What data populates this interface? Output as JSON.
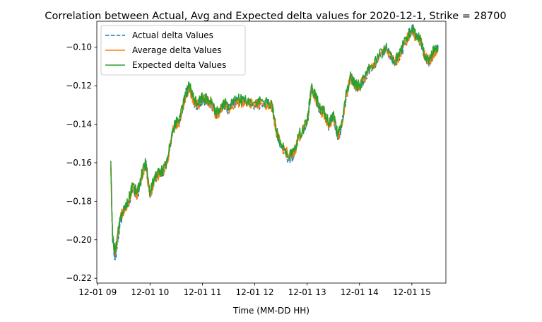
{
  "chart_data": {
    "type": "line",
    "title": "Correlation between Actual, Avg and Expected delta values for 2020-12-1, Strike = 28700",
    "xlabel": "Time (MM-DD HH)",
    "ylabel": "",
    "xlim": [
      "2020-12-01 08:59",
      "2020-12-01 15:39"
    ],
    "ylim": [
      -0.2225,
      -0.0865
    ],
    "x_ticks": [
      "12-01 09",
      "12-01 10",
      "12-01 11",
      "12-01 12",
      "12-01 13",
      "12-01 14",
      "12-01 15"
    ],
    "y_ticks": [
      -0.22,
      -0.2,
      -0.18,
      -0.16,
      -0.14,
      -0.12,
      -0.1
    ],
    "y_tick_labels": [
      "−0.22",
      "−0.20",
      "−0.18",
      "−0.16",
      "−0.14",
      "−0.12",
      "−0.10"
    ],
    "grid": false,
    "legend_position": "top-left",
    "series": [
      {
        "name": "Actual delta Values",
        "color": "#1f77b4",
        "style": "dashed",
        "x": [
          "09:15",
          "09:17",
          "09:20",
          "09:23",
          "09:26",
          "09:30",
          "09:35",
          "09:40",
          "09:45",
          "09:50",
          "09:55",
          "10:00",
          "10:05",
          "10:10",
          "10:15",
          "10:20",
          "10:25",
          "10:30",
          "10:35",
          "10:40",
          "10:45",
          "10:50",
          "10:55",
          "11:00",
          "11:05",
          "11:10",
          "11:15",
          "11:20",
          "11:25",
          "11:30",
          "11:40",
          "11:50",
          "12:00",
          "12:10",
          "12:20",
          "12:25",
          "12:30",
          "12:40",
          "12:45",
          "12:50",
          "13:00",
          "13:05",
          "13:10",
          "13:15",
          "13:20",
          "13:25",
          "13:30",
          "13:35",
          "13:40",
          "13:45",
          "13:50",
          "13:55",
          "14:00",
          "14:10",
          "14:20",
          "14:30",
          "14:40",
          "14:45",
          "14:50",
          "15:00",
          "15:05",
          "15:10",
          "15:15",
          "15:20",
          "15:25",
          "15:30"
        ],
        "y": [
          -0.163,
          -0.2,
          -0.21,
          -0.2,
          -0.19,
          -0.185,
          -0.182,
          -0.172,
          -0.178,
          -0.168,
          -0.16,
          -0.178,
          -0.168,
          -0.166,
          -0.165,
          -0.16,
          -0.145,
          -0.14,
          -0.138,
          -0.125,
          -0.12,
          -0.128,
          -0.13,
          -0.127,
          -0.128,
          -0.129,
          -0.135,
          -0.133,
          -0.13,
          -0.132,
          -0.128,
          -0.129,
          -0.13,
          -0.129,
          -0.131,
          -0.145,
          -0.152,
          -0.158,
          -0.155,
          -0.147,
          -0.14,
          -0.12,
          -0.127,
          -0.133,
          -0.135,
          -0.142,
          -0.135,
          -0.148,
          -0.14,
          -0.125,
          -0.115,
          -0.12,
          -0.121,
          -0.113,
          -0.107,
          -0.1,
          -0.108,
          -0.105,
          -0.1,
          -0.09,
          -0.095,
          -0.097,
          -0.105,
          -0.108,
          -0.103,
          -0.1
        ]
      },
      {
        "name": "Average delta Values",
        "color": "#ff7f0e",
        "style": "solid",
        "x": [
          "09:15",
          "09:17",
          "09:20",
          "09:23",
          "09:26",
          "09:30",
          "09:35",
          "09:40",
          "09:45",
          "09:50",
          "09:55",
          "10:00",
          "10:05",
          "10:10",
          "10:15",
          "10:20",
          "10:25",
          "10:30",
          "10:35",
          "10:40",
          "10:45",
          "10:50",
          "10:55",
          "11:00",
          "11:05",
          "11:10",
          "11:15",
          "11:20",
          "11:25",
          "11:30",
          "11:40",
          "11:50",
          "12:00",
          "12:10",
          "12:20",
          "12:25",
          "12:30",
          "12:40",
          "12:45",
          "12:50",
          "13:00",
          "13:05",
          "13:10",
          "13:15",
          "13:20",
          "13:25",
          "13:30",
          "13:35",
          "13:40",
          "13:45",
          "13:50",
          "13:55",
          "14:00",
          "14:10",
          "14:20",
          "14:30",
          "14:40",
          "14:45",
          "14:50",
          "15:00",
          "15:05",
          "15:10",
          "15:15",
          "15:20",
          "15:25",
          "15:30"
        ],
        "y": [
          -0.162,
          -0.198,
          -0.208,
          -0.198,
          -0.189,
          -0.184,
          -0.181,
          -0.172,
          -0.177,
          -0.168,
          -0.161,
          -0.177,
          -0.168,
          -0.166,
          -0.164,
          -0.16,
          -0.145,
          -0.14,
          -0.137,
          -0.126,
          -0.121,
          -0.128,
          -0.13,
          -0.127,
          -0.128,
          -0.129,
          -0.135,
          -0.133,
          -0.13,
          -0.132,
          -0.128,
          -0.129,
          -0.13,
          -0.129,
          -0.131,
          -0.145,
          -0.151,
          -0.157,
          -0.155,
          -0.147,
          -0.14,
          -0.121,
          -0.127,
          -0.133,
          -0.135,
          -0.141,
          -0.135,
          -0.147,
          -0.14,
          -0.125,
          -0.116,
          -0.12,
          -0.121,
          -0.113,
          -0.107,
          -0.101,
          -0.108,
          -0.105,
          -0.1,
          -0.091,
          -0.095,
          -0.097,
          -0.105,
          -0.107,
          -0.103,
          -0.101
        ]
      },
      {
        "name": "Expected delta Values",
        "color": "#2ca02c",
        "style": "solid",
        "x": [
          "09:15",
          "09:17",
          "09:20",
          "09:23",
          "09:26",
          "09:30",
          "09:35",
          "09:40",
          "09:45",
          "09:50",
          "09:55",
          "10:00",
          "10:05",
          "10:10",
          "10:15",
          "10:20",
          "10:25",
          "10:30",
          "10:35",
          "10:40",
          "10:45",
          "10:50",
          "10:55",
          "11:00",
          "11:05",
          "11:10",
          "11:15",
          "11:20",
          "11:25",
          "11:30",
          "11:40",
          "11:50",
          "12:00",
          "12:10",
          "12:20",
          "12:25",
          "12:30",
          "12:40",
          "12:45",
          "12:50",
          "13:00",
          "13:05",
          "13:10",
          "13:15",
          "13:20",
          "13:25",
          "13:30",
          "13:35",
          "13:40",
          "13:45",
          "13:50",
          "13:55",
          "14:00",
          "14:10",
          "14:20",
          "14:30",
          "14:40",
          "14:45",
          "14:50",
          "15:00",
          "15:05",
          "15:10",
          "15:15",
          "15:20",
          "15:25",
          "15:30"
        ],
        "y": [
          -0.159,
          -0.198,
          -0.207,
          -0.197,
          -0.188,
          -0.183,
          -0.18,
          -0.171,
          -0.176,
          -0.167,
          -0.16,
          -0.176,
          -0.167,
          -0.165,
          -0.164,
          -0.159,
          -0.144,
          -0.139,
          -0.136,
          -0.125,
          -0.12,
          -0.127,
          -0.129,
          -0.126,
          -0.127,
          -0.128,
          -0.134,
          -0.132,
          -0.129,
          -0.131,
          -0.127,
          -0.128,
          -0.129,
          -0.128,
          -0.13,
          -0.144,
          -0.15,
          -0.156,
          -0.154,
          -0.146,
          -0.139,
          -0.12,
          -0.126,
          -0.132,
          -0.134,
          -0.14,
          -0.134,
          -0.146,
          -0.139,
          -0.124,
          -0.115,
          -0.119,
          -0.12,
          -0.112,
          -0.106,
          -0.1,
          -0.107,
          -0.104,
          -0.099,
          -0.09,
          -0.094,
          -0.096,
          -0.104,
          -0.106,
          -0.102,
          -0.1
        ]
      }
    ]
  }
}
